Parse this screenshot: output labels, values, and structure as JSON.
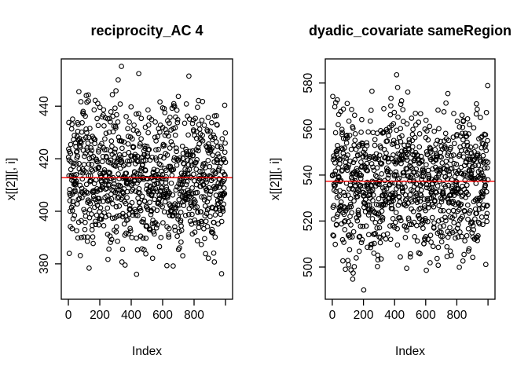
{
  "figure": {
    "background": "#ffffff",
    "axis_color": "#000000",
    "point_color": "#000000",
    "mean_line_color": "#ff0000"
  },
  "chart_data": [
    {
      "type": "scatter",
      "title": "reciprocity_AC 4",
      "xlabel": "Index",
      "ylabel": "x[[2]][, i]",
      "marker": "open-circle",
      "grid": false,
      "legend": "none",
      "n_points": 1000,
      "x_min": 1,
      "x_max": 1000,
      "xlim": [
        -45,
        1045
      ],
      "ylim": [
        366.5,
        458
      ],
      "x_ticks": [
        0,
        200,
        400,
        600,
        800,
        1000
      ],
      "x_tick_labels": [
        "0",
        "200",
        "400",
        "600",
        "800",
        ""
      ],
      "y_ticks": [
        380,
        400,
        420,
        440
      ],
      "y_tick_labels": [
        "380",
        "400",
        "420",
        "440"
      ],
      "points_distribution": "normal",
      "points_mean": 412.3,
      "points_sd": 13.8,
      "points_min": 369,
      "points_max": 455.5,
      "mean_line": 412.8
    },
    {
      "type": "scatter",
      "title": "dyadic_covariate sameRegion",
      "xlabel": "Index",
      "ylabel": "x[[2]][, i]",
      "marker": "open-circle",
      "grid": false,
      "legend": "none",
      "n_points": 1000,
      "x_min": 1,
      "x_max": 1000,
      "xlim": [
        -45,
        1045
      ],
      "ylim": [
        486,
        590.5
      ],
      "x_ticks": [
        0,
        200,
        400,
        600,
        800,
        1000
      ],
      "x_tick_labels": [
        "0",
        "200",
        "400",
        "600",
        "800",
        ""
      ],
      "y_ticks": [
        500,
        520,
        540,
        560,
        580
      ],
      "y_tick_labels": [
        "500",
        "520",
        "540",
        "560",
        "580"
      ],
      "points_distribution": "normal",
      "points_mean": 536.5,
      "points_sd": 15.2,
      "points_min": 489,
      "points_max": 587,
      "mean_line": 537.3
    }
  ]
}
